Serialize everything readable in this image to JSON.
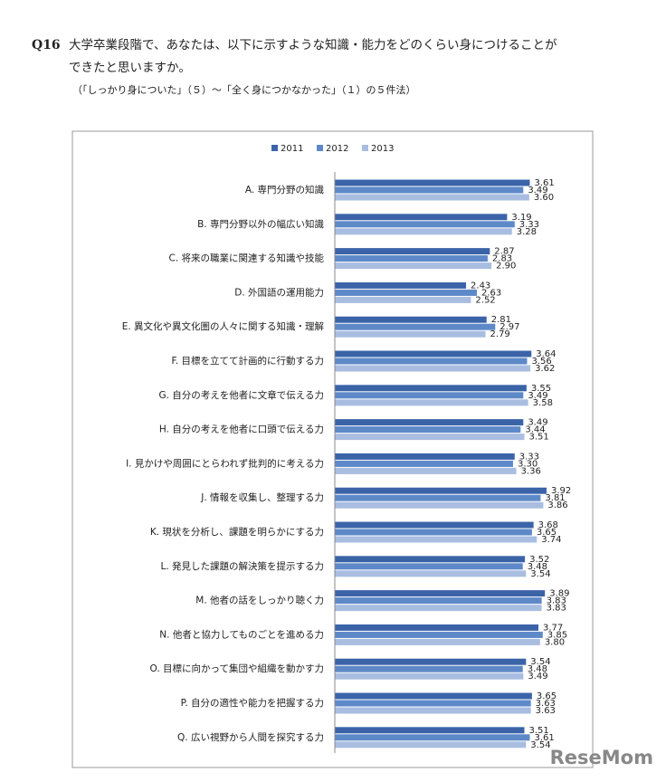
{
  "question": {
    "number": "Q16",
    "line1": "大学卒業段階で、あなたは、以下に示すような知識・能力をどのくらい身につけることが",
    "line2": "できたと思いますか。",
    "note": "（「しっかり身についた」（５）～「全く身につかなかった」（１）の５件法）"
  },
  "watermark": "ReseMom",
  "chart_data": {
    "type": "hbar",
    "categories": [
      "A. 専門分野の知識",
      "B. 専門分野以外の幅広い知識",
      "C. 将来の職業に関連する知識や技能",
      "D. 外国語の運用能力",
      "E. 異文化や異文化圏の人々に関する知識・理解",
      "F. 目標を立てて計画的に行動する力",
      "G. 自分の考えを他者に文章で伝える力",
      "H. 自分の考えを他者に口頭で伝える力",
      "I. 見かけや周囲にとらわれず批判的に考える力",
      "J. 情報を収集し、整理する力",
      "K. 現状を分析し、課題を明らかにする力",
      "L. 発見した課題の解決策を提示する力",
      "M. 他者の話をしっかり聴く力",
      "N. 他者と協力してものごとを進める力",
      "O. 目標に向かって集団や組織を動かす力",
      "P. 自分の適性や能力を把握する力",
      "Q. 広い視野から人間を探究する力"
    ],
    "series": [
      {
        "name": "2011",
        "color": "#3b64a8",
        "values": [
          3.61,
          3.19,
          2.87,
          2.43,
          2.81,
          3.64,
          3.55,
          3.49,
          3.33,
          3.92,
          3.68,
          3.52,
          3.89,
          3.77,
          3.54,
          3.65,
          3.51
        ],
        "value_labels": [
          "3.61",
          "3.19",
          "2.87",
          "2.43",
          "2.81",
          "3.64",
          "3.55",
          "3.49",
          "3.33",
          "3.92",
          "3.68",
          "3.52",
          "3.89",
          "3.77",
          "3.54",
          "3.65",
          "3.51"
        ]
      },
      {
        "name": "2012",
        "color": "#5e89c8",
        "values": [
          3.49,
          3.33,
          2.83,
          2.63,
          2.97,
          3.56,
          3.49,
          3.44,
          3.3,
          3.81,
          3.65,
          3.48,
          3.83,
          3.85,
          3.48,
          3.63,
          3.61
        ],
        "value_labels": [
          "3.49",
          "3.33",
          "2.83",
          "2.63",
          "2.97",
          "3.56",
          "3.49",
          "3.44",
          "3.30",
          "3.81",
          "3.65",
          "3.48",
          "3.83",
          "3.85",
          "3.48",
          "3.63",
          "3.61"
        ]
      },
      {
        "name": "2013",
        "color": "#a9bde1",
        "values": [
          3.6,
          3.28,
          2.9,
          2.52,
          2.79,
          3.62,
          3.58,
          3.51,
          3.36,
          3.86,
          3.74,
          3.54,
          3.83,
          3.8,
          3.49,
          3.63,
          3.54
        ],
        "value_labels": [
          "3.60",
          "3.28",
          "2.90",
          "2.52",
          "2.79",
          "3.62",
          "3.58",
          "3.51",
          "3.36",
          "3.86",
          "3.74",
          "3.54",
          "3.83",
          "3.80",
          "3.49",
          "3.63",
          "3.54"
        ]
      }
    ],
    "xlim": [
      0,
      4.5
    ],
    "legend": "top"
  }
}
